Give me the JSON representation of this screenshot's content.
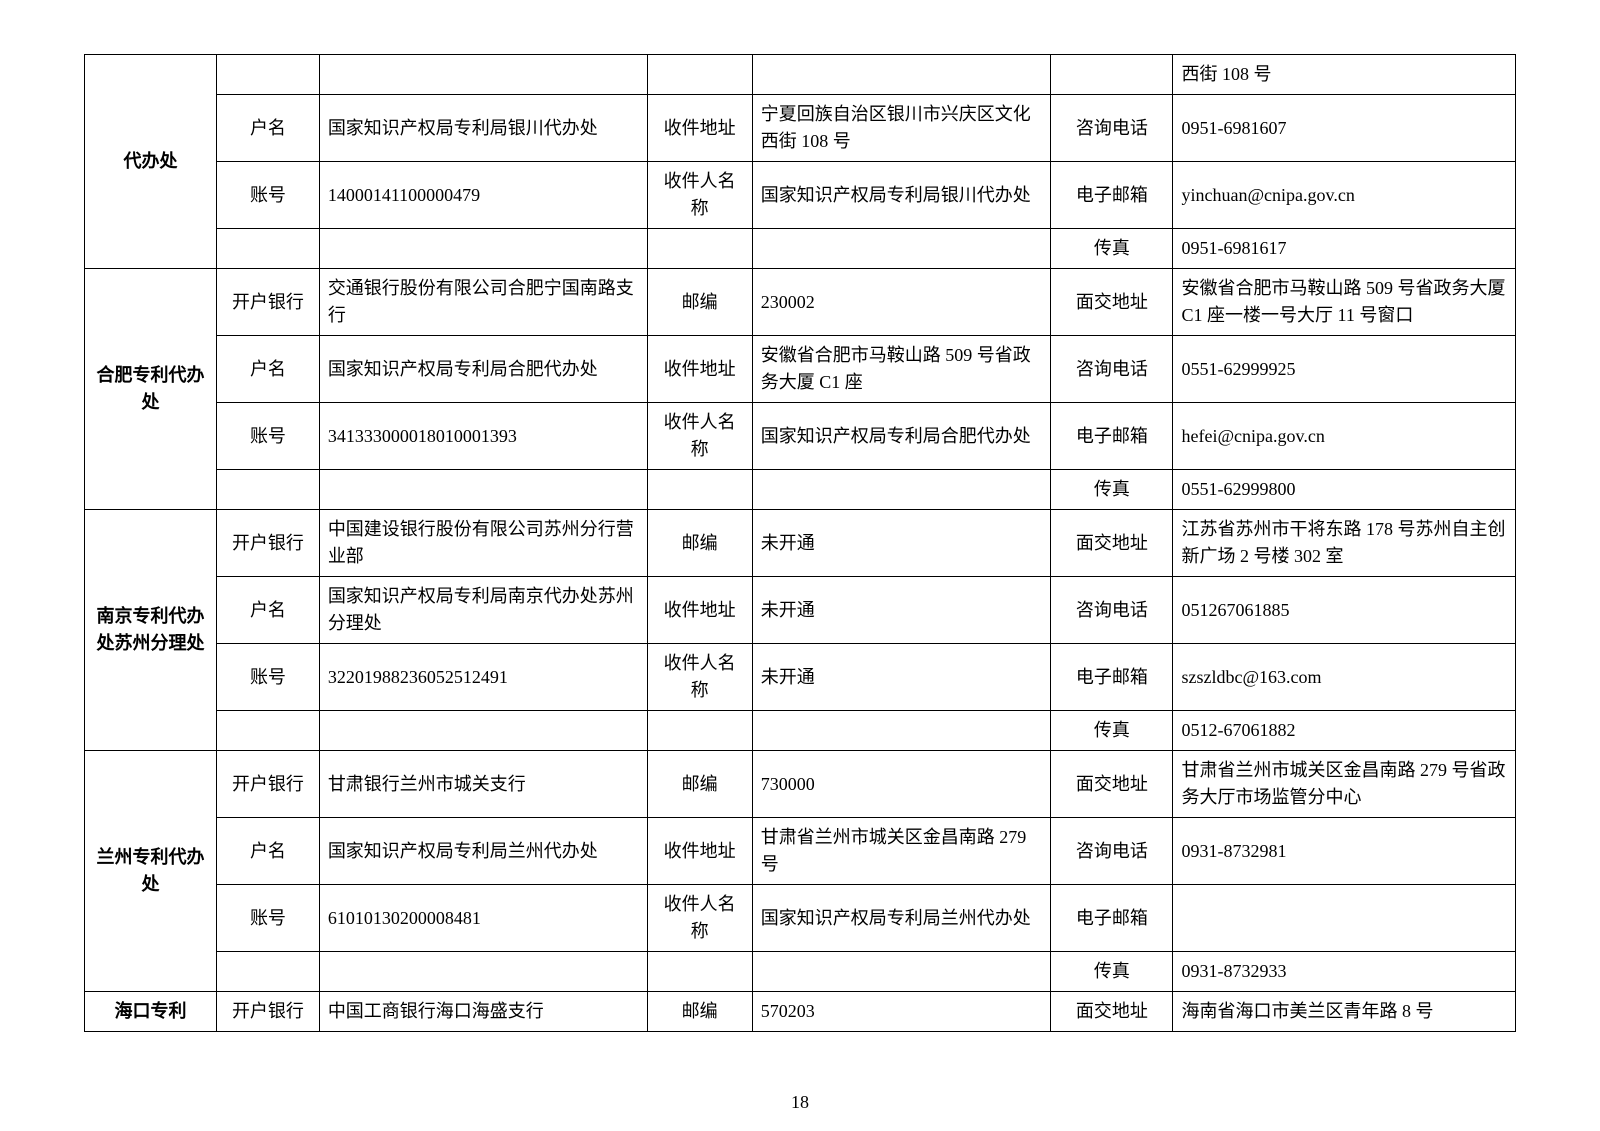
{
  "labels": {
    "bank": "开户银行",
    "account_name": "户名",
    "account_no": "账号",
    "postcode": "邮编",
    "mail_addr": "收件地址",
    "recipient": "收件人名称",
    "visit_addr": "面交地址",
    "phone": "咨询电话",
    "email": "电子邮箱",
    "fax": "传真"
  },
  "offices": [
    {
      "name": "代办处",
      "partial_first_row": {
        "c6": "西街 108 号"
      },
      "rows": [
        {
          "c1": "户名",
          "c2": "国家知识产权局专利局银川代办处",
          "c3": "收件地址",
          "c4": "宁夏回族自治区银川市兴庆区文化西街 108 号",
          "c5": "咨询电话",
          "c6": "0951-6981607"
        },
        {
          "c1": "账号",
          "c2": "14000141100000479",
          "c3": "收件人名称",
          "c4": "国家知识产权局专利局银川代办处",
          "c5": "电子邮箱",
          "c6": "yinchuan@cnipa.gov.cn"
        },
        {
          "c1": "",
          "c2": "",
          "c3": "",
          "c4": "",
          "c5": "传真",
          "c6": "0951-6981617"
        }
      ]
    },
    {
      "name": "合肥专利代办处",
      "rows": [
        {
          "c1": "开户银行",
          "c2": "交通银行股份有限公司合肥宁国南路支行",
          "c3": "邮编",
          "c4": "230002",
          "c5": "面交地址",
          "c6": "安徽省合肥市马鞍山路 509 号省政务大厦 C1 座一楼一号大厅 11 号窗口"
        },
        {
          "c1": "户名",
          "c2": "国家知识产权局专利局合肥代办处",
          "c3": "收件地址",
          "c4": "安徽省合肥市马鞍山路 509 号省政务大厦 C1 座",
          "c5": "咨询电话",
          "c6": "0551-62999925"
        },
        {
          "c1": "账号",
          "c2": "341333000018010001393",
          "c3": "收件人名称",
          "c4": "国家知识产权局专利局合肥代办处",
          "c5": "电子邮箱",
          "c6": "hefei@cnipa.gov.cn"
        },
        {
          "c1": "",
          "c2": "",
          "c3": "",
          "c4": "",
          "c5": "传真",
          "c6": "0551-62999800"
        }
      ]
    },
    {
      "name": "南京专利代办处苏州分理处",
      "rows": [
        {
          "c1": "开户银行",
          "c2": "中国建设银行股份有限公司苏州分行营业部",
          "c3": "邮编",
          "c4": "未开通",
          "c5": "面交地址",
          "c6": "江苏省苏州市干将东路 178 号苏州自主创新广场 2 号楼 302 室"
        },
        {
          "c1": "户名",
          "c2": "国家知识产权局专利局南京代办处苏州分理处",
          "c3": "收件地址",
          "c4": "未开通",
          "c5": "咨询电话",
          "c6": "051267061885"
        },
        {
          "c1": "账号",
          "c2": "32201988236052512491",
          "c3": "收件人名称",
          "c4": "未开通",
          "c5": "电子邮箱",
          "c6": "szszldbc@163.com"
        },
        {
          "c1": "",
          "c2": "",
          "c3": "",
          "c4": "",
          "c5": "传真",
          "c6": "0512-67061882"
        }
      ]
    },
    {
      "name": "兰州专利代办处",
      "rows": [
        {
          "c1": "开户银行",
          "c2": "甘肃银行兰州市城关支行",
          "c3": "邮编",
          "c4": "730000",
          "c5": "面交地址",
          "c6": "甘肃省兰州市城关区金昌南路 279 号省政务大厅市场监管分中心"
        },
        {
          "c1": "户名",
          "c2": "国家知识产权局专利局兰州代办处",
          "c3": "收件地址",
          "c4": "甘肃省兰州市城关区金昌南路 279 号",
          "c5": "咨询电话",
          "c6": "0931-8732981"
        },
        {
          "c1": "账号",
          "c2": "61010130200008481",
          "c3": "收件人名称",
          "c4": "国家知识产权局专利局兰州代办处",
          "c5": "电子邮箱",
          "c6": ""
        },
        {
          "c1": "",
          "c2": "",
          "c3": "",
          "c4": "",
          "c5": "传真",
          "c6": "0931-8732933"
        }
      ]
    },
    {
      "name": "海口专利",
      "rows": [
        {
          "c1": "开户银行",
          "c2": "中国工商银行海口海盛支行",
          "c3": "邮编",
          "c4": "570203",
          "c5": "面交地址",
          "c6": "海南省海口市美兰区青年路 8 号"
        }
      ]
    }
  ],
  "page_number": "18"
}
